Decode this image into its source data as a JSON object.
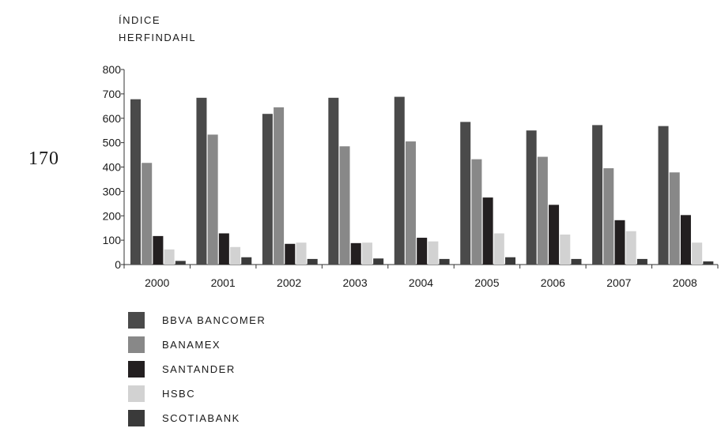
{
  "page_number": "170",
  "chart_data": {
    "type": "bar",
    "title": "",
    "ylabel_lines": [
      "ÍNDICE",
      "HERFINDAHL"
    ],
    "xlabel": "",
    "categories": [
      "2000",
      "2001",
      "2002",
      "2003",
      "2004",
      "2005",
      "2006",
      "2007",
      "2008"
    ],
    "ylim": [
      0,
      800
    ],
    "yticks": [
      0,
      100,
      200,
      300,
      400,
      500,
      600,
      700,
      800
    ],
    "grid": false,
    "legend_position": "bottom-left",
    "series": [
      {
        "name": "BBVA BANCOMER",
        "color": "#4a4a4a",
        "values": [
          678,
          684,
          618,
          684,
          688,
          585,
          550,
          572,
          568
        ]
      },
      {
        "name": "BANAMEX",
        "color": "#888888",
        "values": [
          417,
          533,
          645,
          485,
          505,
          432,
          442,
          395,
          378
        ]
      },
      {
        "name": "SANTANDER",
        "color": "#231f20",
        "values": [
          117,
          128,
          85,
          88,
          110,
          275,
          245,
          182,
          203
        ]
      },
      {
        "name": "HSBC",
        "color": "#d2d2d2",
        "values": [
          62,
          72,
          90,
          90,
          95,
          128,
          123,
          137,
          90
        ]
      },
      {
        "name": "SCOTIABANK",
        "color": "#3a3a3a",
        "values": [
          15,
          30,
          23,
          25,
          23,
          30,
          23,
          23,
          13
        ]
      }
    ]
  }
}
